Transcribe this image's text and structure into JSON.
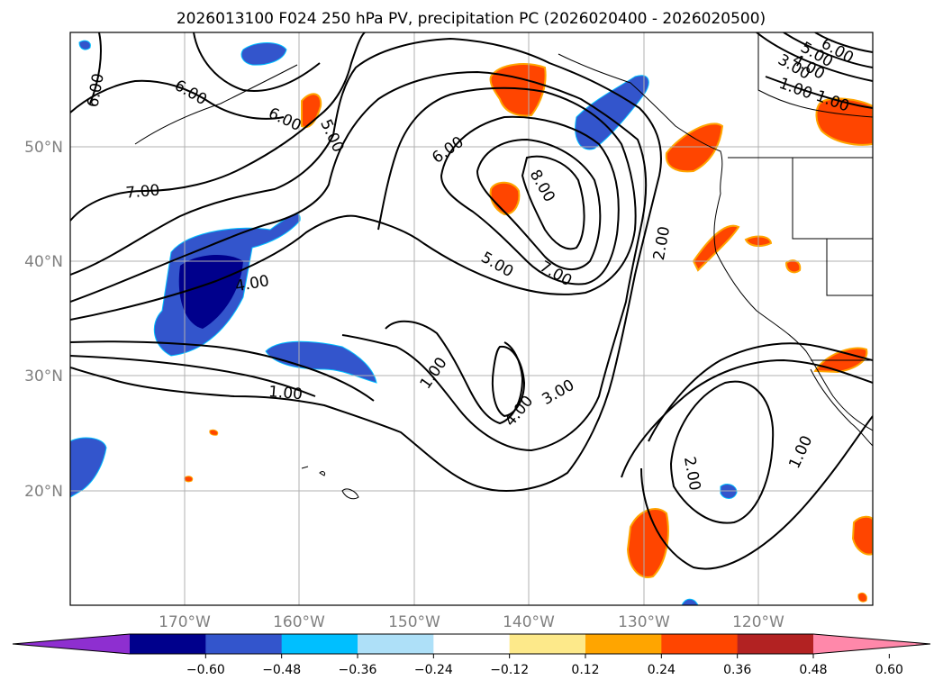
{
  "title": "2026013100 F024 250 hPa PV, precipitation PC (2026020400 - 2026020500)",
  "lat_labels": [
    "50°N",
    "40°N",
    "30°N",
    "20°N"
  ],
  "lon_labels": [
    "170°W",
    "160°W",
    "150°W",
    "140°W",
    "130°W",
    "120°W"
  ],
  "contour_labels": [
    "6.00",
    "6.00",
    "6.00",
    "5.00",
    "7.00",
    "6.00",
    "8.00",
    "4.00",
    "5.00",
    "7.00",
    "2.00",
    "1.00",
    "4.00",
    "3.00",
    "1.00",
    "2.00",
    "1.00",
    "5.00",
    "6.00",
    "4.00",
    "3.00",
    "1.00",
    "1.00"
  ],
  "colorbar": {
    "ticks": [
      "−0.60",
      "−0.48",
      "−0.36",
      "−0.24",
      "−0.12",
      "0.12",
      "0.24",
      "0.36",
      "0.48",
      "0.60"
    ],
    "colors": [
      "#8e2fd0",
      "#00008c",
      "#3355cc",
      "#00bfff",
      "#aee0f8",
      "#ffffff",
      "#fde98a",
      "#ffa500",
      "#ff4500",
      "#b22222",
      "#ff88aa"
    ]
  }
}
